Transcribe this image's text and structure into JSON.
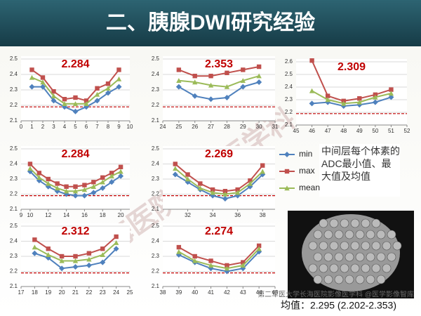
{
  "title": "二、胰腺DWI研究经验",
  "chart_data": [
    {
      "type": "line",
      "annotation": "2.284",
      "x": [
        1,
        2,
        3,
        4,
        5,
        6,
        7,
        8,
        9
      ],
      "xlim": [
        0,
        10
      ],
      "xticks": [
        0,
        1,
        2,
        3,
        4,
        5,
        6,
        7,
        8,
        9,
        10
      ],
      "ylim": [
        2.1,
        2.5
      ],
      "yticks": [
        2.1,
        2.2,
        2.3,
        2.4,
        2.5
      ],
      "reference_line": 2.19,
      "grid": true,
      "series": [
        {
          "name": "min",
          "color": "#4f81bd",
          "values": [
            2.32,
            2.32,
            2.23,
            2.19,
            2.16,
            2.19,
            2.23,
            2.28,
            2.32
          ]
        },
        {
          "name": "max",
          "color": "#c0504d",
          "values": [
            2.43,
            2.38,
            2.29,
            2.24,
            2.25,
            2.23,
            2.31,
            2.34,
            2.43
          ]
        },
        {
          "name": "mean",
          "color": "#9bbb59",
          "values": [
            2.38,
            2.35,
            2.26,
            2.21,
            2.21,
            2.21,
            2.27,
            2.31,
            2.37
          ]
        }
      ]
    },
    {
      "type": "line",
      "annotation": "2.353",
      "x": [
        25,
        26,
        27,
        28,
        29,
        30
      ],
      "xlim": [
        24,
        31
      ],
      "xticks": [
        24,
        25,
        26,
        27,
        28,
        29,
        30,
        31
      ],
      "ylim": [
        2.1,
        2.5
      ],
      "yticks": [
        2.1,
        2.2,
        2.3,
        2.4,
        2.5
      ],
      "reference_line": 2.19,
      "grid": true,
      "series": [
        {
          "name": "min",
          "color": "#4f81bd",
          "values": [
            2.32,
            2.26,
            2.24,
            2.25,
            2.32,
            2.35
          ]
        },
        {
          "name": "max",
          "color": "#c0504d",
          "values": [
            2.43,
            2.39,
            2.39,
            2.41,
            2.43,
            2.45
          ]
        },
        {
          "name": "mean",
          "color": "#9bbb59",
          "values": [
            2.36,
            2.35,
            2.33,
            2.32,
            2.36,
            2.39
          ]
        }
      ]
    },
    {
      "type": "line",
      "annotation": "2.309",
      "x": [
        46,
        47,
        48,
        49,
        50,
        51
      ],
      "xlim": [
        45,
        52
      ],
      "xticks": [
        45,
        46,
        47,
        48,
        49,
        50,
        51,
        52
      ],
      "ylim": [
        2.1,
        2.6
      ],
      "yticks": [
        2.1,
        2.2,
        2.3,
        2.4,
        2.5,
        2.6
      ],
      "reference_line": 2.19,
      "grid": true,
      "series": [
        {
          "name": "min",
          "color": "#4f81bd",
          "values": [
            2.27,
            2.28,
            2.25,
            2.26,
            2.28,
            2.32
          ]
        },
        {
          "name": "max",
          "color": "#c0504d",
          "values": [
            2.61,
            2.33,
            2.29,
            2.31,
            2.34,
            2.38
          ]
        },
        {
          "name": "mean",
          "color": "#9bbb59",
          "values": [
            2.37,
            2.3,
            2.27,
            2.28,
            2.32,
            2.35
          ]
        }
      ]
    },
    {
      "type": "line",
      "annotation": "2.284",
      "x": [
        10,
        11,
        12,
        13,
        14,
        15,
        16,
        17,
        18,
        19,
        20
      ],
      "xlim": [
        9,
        21
      ],
      "xticks": [
        9,
        10,
        12,
        14,
        16,
        18,
        20
      ],
      "ylim": [
        2.1,
        2.5
      ],
      "yticks": [
        2.1,
        2.2,
        2.3,
        2.4,
        2.5
      ],
      "reference_line": 2.19,
      "grid": true,
      "series": [
        {
          "name": "min",
          "color": "#4f81bd",
          "values": [
            2.35,
            2.29,
            2.25,
            2.22,
            2.2,
            2.19,
            2.19,
            2.21,
            2.24,
            2.28,
            2.32
          ]
        },
        {
          "name": "max",
          "color": "#c0504d",
          "values": [
            2.4,
            2.34,
            2.3,
            2.27,
            2.25,
            2.25,
            2.26,
            2.28,
            2.31,
            2.34,
            2.38
          ]
        },
        {
          "name": "mean",
          "color": "#9bbb59",
          "values": [
            2.37,
            2.31,
            2.27,
            2.24,
            2.22,
            2.22,
            2.23,
            2.25,
            2.28,
            2.32,
            2.35
          ]
        }
      ]
    },
    {
      "type": "line",
      "annotation": "2.269",
      "x": [
        31,
        32,
        33,
        34,
        35,
        36,
        37,
        38
      ],
      "xlim": [
        30,
        39
      ],
      "xticks": [
        32,
        34,
        36,
        38
      ],
      "ylim": [
        2.1,
        2.5
      ],
      "yticks": [
        2.1,
        2.2,
        2.3,
        2.4,
        2.5
      ],
      "reference_line": 2.19,
      "grid": true,
      "series": [
        {
          "name": "min",
          "color": "#4f81bd",
          "values": [
            2.33,
            2.28,
            2.23,
            2.19,
            2.17,
            2.19,
            2.25,
            2.33
          ]
        },
        {
          "name": "max",
          "color": "#c0504d",
          "values": [
            2.4,
            2.33,
            2.27,
            2.23,
            2.22,
            2.23,
            2.29,
            2.39
          ]
        },
        {
          "name": "mean",
          "color": "#9bbb59",
          "values": [
            2.37,
            2.3,
            2.24,
            2.21,
            2.2,
            2.21,
            2.27,
            2.35
          ]
        }
      ]
    },
    {
      "type": "line",
      "annotation": "2.312",
      "x": [
        18,
        19,
        20,
        21,
        22,
        23,
        24
      ],
      "xlim": [
        17,
        25
      ],
      "xticks": [
        17,
        18,
        19,
        20,
        21,
        22,
        23,
        24,
        25
      ],
      "ylim": [
        2.1,
        2.5
      ],
      "yticks": [
        2.1,
        2.2,
        2.3,
        2.4,
        2.5
      ],
      "reference_line": 2.19,
      "grid": true,
      "series": [
        {
          "name": "min",
          "color": "#4f81bd",
          "values": [
            2.32,
            2.29,
            2.22,
            2.23,
            2.24,
            2.26,
            2.35
          ]
        },
        {
          "name": "max",
          "color": "#c0504d",
          "values": [
            2.41,
            2.35,
            2.3,
            2.3,
            2.32,
            2.35,
            2.43
          ]
        },
        {
          "name": "mean",
          "color": "#9bbb59",
          "values": [
            2.36,
            2.31,
            2.27,
            2.27,
            2.28,
            2.31,
            2.39
          ]
        }
      ]
    },
    {
      "type": "line",
      "annotation": "2.274",
      "x": [
        39,
        40,
        41,
        42,
        43,
        44
      ],
      "xlim": [
        38,
        45
      ],
      "xticks": [
        38,
        39,
        40,
        41,
        42,
        43,
        44,
        45
      ],
      "ylim": [
        2.1,
        2.5
      ],
      "yticks": [
        2.1,
        2.2,
        2.3,
        2.4,
        2.5
      ],
      "reference_line": 2.19,
      "grid": true,
      "series": [
        {
          "name": "min",
          "color": "#4f81bd",
          "values": [
            2.31,
            2.26,
            2.22,
            2.2,
            2.22,
            2.33
          ]
        },
        {
          "name": "max",
          "color": "#c0504d",
          "values": [
            2.36,
            2.3,
            2.27,
            2.24,
            2.26,
            2.37
          ]
        },
        {
          "name": "mean",
          "color": "#9bbb59",
          "values": [
            2.33,
            2.27,
            2.24,
            2.22,
            2.24,
            2.35
          ]
        }
      ]
    }
  ],
  "note": "中间层每个体素的ADC最小值、最大值及均值",
  "summary": "均值：2.295 (2.202-2.353)",
  "watermark": "长海医院影像医学科",
  "credit": "第二军医大学长海医院影像医学科 @医学影像智库"
}
